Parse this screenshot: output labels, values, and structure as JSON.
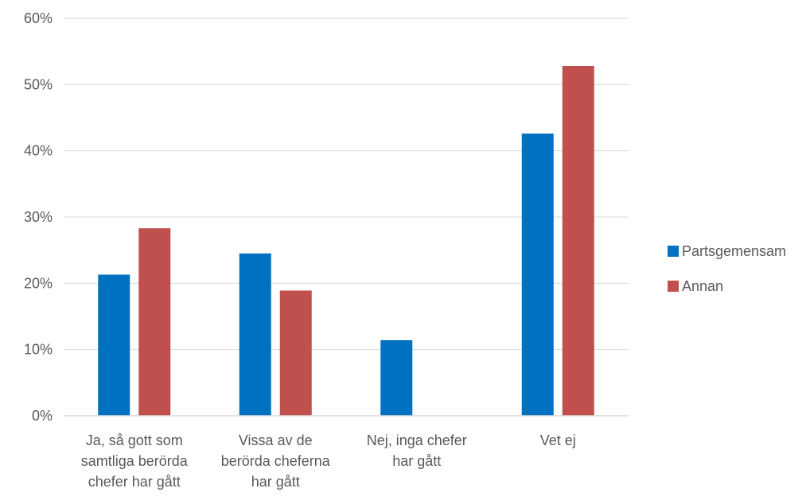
{
  "chart_data": {
    "type": "bar",
    "title": "",
    "xlabel": "",
    "ylabel": "",
    "ylim": [
      0,
      0.6
    ],
    "yticks": [
      0,
      0.1,
      0.2,
      0.3,
      0.4,
      0.5,
      0.6
    ],
    "ytick_labels": [
      "0%",
      "10%",
      "20%",
      "30%",
      "40%",
      "50%",
      "60%"
    ],
    "grid": true,
    "legend_position": "right",
    "categories": [
      [
        "Ja, så gott som",
        "samtliga berörda",
        "chefer har gått"
      ],
      [
        "Vissa av de",
        "berörda cheferna",
        "har gått"
      ],
      [
        "Nej, inga chefer",
        "har gått"
      ],
      [
        "Vet ej"
      ]
    ],
    "series": [
      {
        "name": "Partsgemensam",
        "color": "#0070C0",
        "values": [
          0.213,
          0.245,
          0.114,
          0.426
        ]
      },
      {
        "name": "Annan",
        "color": "#C0504D",
        "values": [
          0.283,
          0.189,
          0.0,
          0.528
        ]
      }
    ]
  }
}
